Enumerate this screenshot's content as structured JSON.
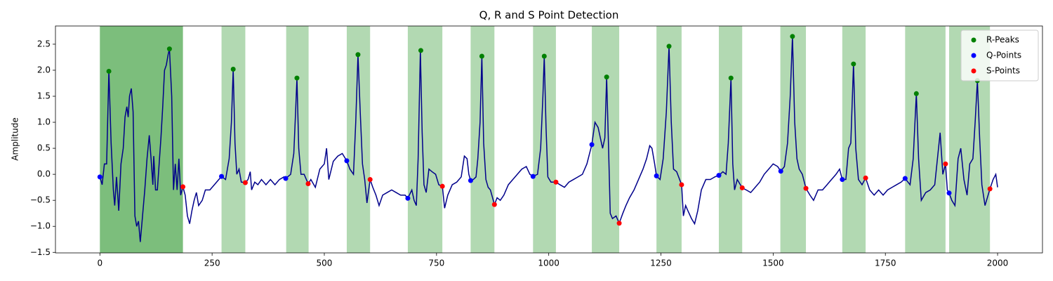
{
  "chart_data": {
    "type": "line",
    "title": "Q, R and S Point Detection",
    "y_label": "Amplitude",
    "xlim": [
      -99,
      2100
    ],
    "ylim": [
      -1.51,
      2.85
    ],
    "xticks": [
      0,
      250,
      500,
      750,
      1000,
      1250,
      1500,
      1750,
      2000
    ],
    "yticks": [
      {
        "value": -1.5,
        "label": "−1.5"
      },
      {
        "value": -1.0,
        "label": "−1.0"
      },
      {
        "value": -0.5,
        "label": "−0.5"
      },
      {
        "value": 0.0,
        "label": "0.0"
      },
      0.5,
      {
        "value": 1.0,
        "label": "1.0"
      },
      1.5,
      {
        "value": 2.0,
        "label": "2.0"
      },
      2.5
    ],
    "legend_position": "upper right",
    "span_color": "green",
    "spans": [
      [
        0,
        185
      ],
      [
        0,
        185
      ],
      [
        271,
        324
      ],
      [
        415,
        465
      ],
      [
        550,
        602
      ],
      [
        686,
        763
      ],
      [
        826,
        879
      ],
      [
        965,
        1016
      ],
      [
        1096,
        1157
      ],
      [
        1240,
        1296
      ],
      [
        1379,
        1431
      ],
      [
        1516,
        1573
      ],
      [
        1654,
        1706
      ],
      [
        1794,
        1884
      ],
      [
        1892,
        1983
      ]
    ],
    "signal": {
      "color": "#00008b",
      "x": [
        0,
        5,
        10,
        15,
        20,
        25,
        30,
        33,
        37,
        42,
        47,
        52,
        56,
        60,
        63,
        66,
        70,
        74,
        78,
        82,
        86,
        90,
        95,
        100,
        105,
        110,
        114,
        118,
        120,
        124,
        128,
        132,
        136,
        140,
        144,
        148,
        152,
        155,
        160,
        164,
        168,
        172,
        176,
        180,
        185,
        190,
        195,
        200,
        205,
        210,
        215,
        220,
        228,
        235,
        245,
        255,
        265,
        271,
        280,
        288,
        293,
        297,
        301,
        305,
        310,
        315,
        324,
        330,
        335,
        338,
        345,
        352,
        360,
        370,
        380,
        390,
        400,
        410,
        414,
        425,
        432,
        436,
        439,
        443,
        448,
        455,
        464,
        470,
        480,
        490,
        500,
        505,
        510,
        520,
        530,
        540,
        550,
        557,
        565,
        570,
        575,
        580,
        585,
        590,
        595,
        602,
        608,
        615,
        622,
        630,
        640,
        650,
        660,
        670,
        680,
        686,
        695,
        700,
        705,
        709,
        714,
        718,
        722,
        727,
        733,
        740,
        748,
        755,
        763,
        768,
        775,
        785,
        795,
        805,
        812,
        818,
        822,
        826,
        832,
        838,
        842,
        847,
        851,
        855,
        860,
        865,
        870,
        879,
        885,
        892,
        900,
        910,
        920,
        930,
        940,
        950,
        958,
        965,
        975,
        982,
        987,
        990,
        994,
        998,
        1005,
        1016,
        1025,
        1035,
        1045,
        1055,
        1065,
        1075,
        1085,
        1096,
        1103,
        1110,
        1115,
        1120,
        1125,
        1129,
        1133,
        1137,
        1142,
        1150,
        1157,
        1165,
        1172,
        1180,
        1190,
        1200,
        1210,
        1218,
        1225,
        1230,
        1236,
        1240,
        1248,
        1255,
        1262,
        1268,
        1273,
        1278,
        1285,
        1296,
        1300,
        1305,
        1310,
        1318,
        1325,
        1332,
        1340,
        1350,
        1360,
        1370,
        1379,
        1388,
        1395,
        1400,
        1406,
        1410,
        1414,
        1420,
        1431,
        1440,
        1450,
        1460,
        1470,
        1480,
        1490,
        1500,
        1510,
        1517,
        1525,
        1532,
        1538,
        1543,
        1548,
        1553,
        1558,
        1565,
        1573,
        1582,
        1590,
        1600,
        1610,
        1620,
        1630,
        1640,
        1648,
        1654,
        1662,
        1668,
        1673,
        1679,
        1684,
        1690,
        1698,
        1706,
        1715,
        1725,
        1735,
        1745,
        1755,
        1765,
        1775,
        1785,
        1794,
        1805,
        1812,
        1819,
        1824,
        1830,
        1840,
        1850,
        1860,
        1866,
        1872,
        1878,
        1884,
        1888,
        1892,
        1898,
        1905,
        1912,
        1918,
        1925,
        1932,
        1938,
        1945,
        1950,
        1955,
        1960,
        1965,
        1972,
        1983,
        1990,
        1996,
        2000
      ],
      "values": [
        -0.05,
        -0.2,
        0.2,
        0.2,
        1.98,
        0.6,
        -0.3,
        -0.6,
        -0.05,
        -0.7,
        0.2,
        0.5,
        1.1,
        1.3,
        1.1,
        1.5,
        1.65,
        1.2,
        -0.8,
        -1.0,
        -0.9,
        -1.3,
        -0.8,
        -0.3,
        0.3,
        0.75,
        0.3,
        -0.2,
        0.35,
        -0.3,
        -0.3,
        0.2,
        0.7,
        1.3,
        2.0,
        2.1,
        2.3,
        2.41,
        1.5,
        -0.3,
        0.2,
        -0.3,
        0.3,
        -0.4,
        -0.24,
        -0.4,
        -0.8,
        -0.95,
        -0.7,
        -0.5,
        -0.35,
        -0.6,
        -0.5,
        -0.3,
        -0.3,
        -0.2,
        -0.1,
        -0.04,
        -0.1,
        0.3,
        1.0,
        2.02,
        0.6,
        0.0,
        0.1,
        -0.15,
        -0.16,
        -0.1,
        0.05,
        -0.3,
        -0.15,
        -0.2,
        -0.1,
        -0.2,
        -0.1,
        -0.2,
        -0.1,
        -0.05,
        -0.08,
        0.0,
        0.4,
        1.2,
        1.85,
        0.5,
        0.0,
        0.0,
        -0.18,
        -0.1,
        -0.25,
        0.1,
        0.2,
        0.5,
        -0.1,
        0.25,
        0.35,
        0.4,
        0.26,
        0.1,
        0.0,
        1.0,
        2.3,
        1.2,
        0.2,
        -0.1,
        -0.55,
        -0.1,
        -0.25,
        -0.4,
        -0.6,
        -0.4,
        -0.35,
        -0.3,
        -0.35,
        -0.4,
        -0.4,
        -0.46,
        -0.3,
        -0.5,
        -0.6,
        0.3,
        2.38,
        0.8,
        -0.2,
        -0.35,
        0.1,
        0.05,
        0.0,
        -0.2,
        -0.23,
        -0.65,
        -0.4,
        -0.2,
        -0.15,
        -0.05,
        0.35,
        0.3,
        0.0,
        -0.12,
        -0.1,
        -0.05,
        0.3,
        1.0,
        2.27,
        0.6,
        -0.1,
        -0.25,
        -0.3,
        -0.58,
        -0.45,
        -0.5,
        -0.4,
        -0.2,
        -0.1,
        0.0,
        0.1,
        0.15,
        0.0,
        -0.04,
        0.0,
        0.5,
        1.5,
        2.27,
        0.9,
        -0.05,
        -0.15,
        -0.15,
        -0.2,
        -0.25,
        -0.15,
        -0.1,
        -0.05,
        0.0,
        0.2,
        0.57,
        1.0,
        0.9,
        0.7,
        0.5,
        0.7,
        1.87,
        0.6,
        -0.75,
        -0.85,
        -0.8,
        -0.94,
        -0.75,
        -0.6,
        -0.45,
        -0.3,
        -0.1,
        0.1,
        0.3,
        0.55,
        0.5,
        0.2,
        -0.03,
        -0.1,
        0.3,
        1.2,
        2.46,
        1.0,
        0.1,
        0.05,
        -0.2,
        -0.8,
        -0.6,
        -0.7,
        -0.85,
        -0.95,
        -0.7,
        -0.3,
        -0.1,
        -0.1,
        -0.05,
        -0.02,
        0.05,
        0.0,
        0.6,
        1.85,
        0.2,
        -0.3,
        -0.1,
        -0.26,
        -0.3,
        -0.35,
        -0.25,
        -0.15,
        0.0,
        0.1,
        0.2,
        0.15,
        0.06,
        0.15,
        0.6,
        1.5,
        2.65,
        1.0,
        0.3,
        0.1,
        0.0,
        -0.27,
        -0.4,
        -0.5,
        -0.3,
        -0.3,
        -0.2,
        -0.1,
        0.0,
        0.1,
        -0.1,
        -0.1,
        0.5,
        0.6,
        2.12,
        0.5,
        -0.1,
        -0.2,
        -0.07,
        -0.3,
        -0.4,
        -0.3,
        -0.4,
        -0.3,
        -0.25,
        -0.2,
        -0.15,
        -0.08,
        -0.2,
        0.3,
        1.55,
        0.3,
        -0.5,
        -0.35,
        -0.3,
        -0.2,
        0.3,
        0.8,
        0.0,
        0.2,
        -0.3,
        -0.36,
        -0.5,
        -0.6,
        0.3,
        0.5,
        -0.1,
        -0.4,
        0.2,
        0.3,
        1.0,
        1.8,
        0.7,
        -0.2,
        -0.6,
        -0.28,
        -0.1,
        0.0,
        -0.25
      ]
    },
    "series": [
      {
        "name": "R-Peaks",
        "color": "green",
        "x": [
          20,
          155,
          297,
          439,
          575,
          715,
          851,
          990,
          1129,
          1268,
          1406,
          1543,
          1679,
          1819,
          1955
        ],
        "values": [
          1.98,
          2.41,
          2.02,
          1.85,
          2.3,
          2.38,
          2.27,
          2.27,
          1.87,
          2.46,
          1.85,
          2.65,
          2.12,
          1.55,
          1.8
        ]
      },
      {
        "name": "Q-Points",
        "color": "blue",
        "x": [
          0,
          271,
          414,
          550,
          686,
          826,
          965,
          1096,
          1240,
          1379,
          1517,
          1654,
          1794,
          1892
        ],
        "values": [
          -0.05,
          -0.04,
          -0.08,
          0.26,
          -0.46,
          -0.12,
          -0.04,
          0.57,
          -0.03,
          -0.02,
          0.06,
          -0.1,
          -0.08,
          -0.36
        ]
      },
      {
        "name": "S-Points",
        "color": "red",
        "x": [
          185,
          324,
          464,
          602,
          763,
          879,
          1016,
          1157,
          1296,
          1431,
          1573,
          1706,
          1884,
          1983
        ],
        "values": [
          -0.24,
          -0.16,
          -0.18,
          -0.1,
          -0.23,
          -0.58,
          -0.15,
          -0.94,
          -0.2,
          -0.26,
          -0.27,
          -0.07,
          0.2,
          -0.28
        ]
      }
    ]
  }
}
